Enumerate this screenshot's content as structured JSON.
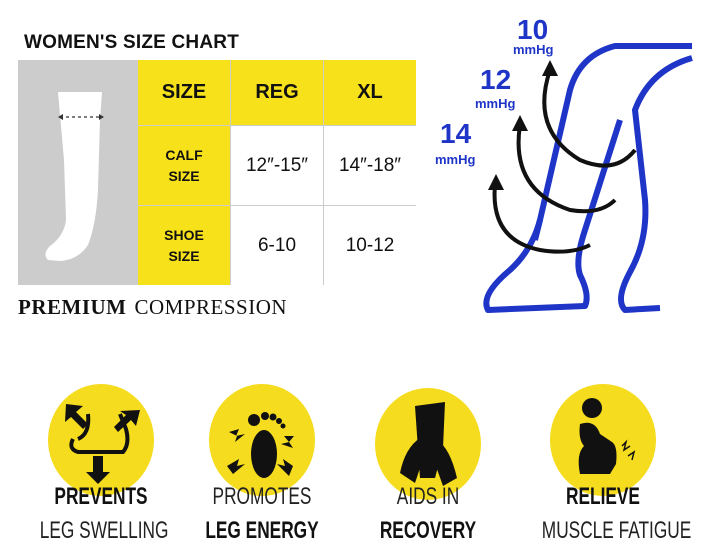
{
  "title": "WOMEN'S SIZE CHART",
  "table": {
    "headers": [
      "SIZE",
      "REG",
      "XL"
    ],
    "rows": [
      {
        "label": "CALF SIZE",
        "reg": "12″-15″",
        "xl": "14″-18″"
      },
      {
        "label": "SHOE SIZE",
        "reg": "6-10",
        "xl": "10-12"
      }
    ]
  },
  "tagline": {
    "bold": "PREMIUM",
    "regular": "COMPRESSION"
  },
  "pressure": [
    {
      "value": "10",
      "unit": "mmHg"
    },
    {
      "value": "12",
      "unit": "mmHg"
    },
    {
      "value": "14",
      "unit": "mmHg"
    }
  ],
  "features": [
    {
      "icon": "foot-swelling-arrows-icon",
      "line1": "PREVENTS",
      "line2": "LEG SWELLING",
      "bold_line": 1
    },
    {
      "icon": "footprint-energy-icon",
      "line1": "PROMOTES",
      "line2": "LEG ENERGY",
      "bold_line": 2
    },
    {
      "icon": "hands-massaging-foot-icon",
      "line1": "AIDS IN",
      "line2": "RECOVERY",
      "bold_line": 2
    },
    {
      "icon": "kneeling-person-pain-icon",
      "line1": "RELIEVE",
      "line2": "MUSCLE FATIGUE",
      "bold_line": 1
    }
  ],
  "colors": {
    "yellow": "#f7e11a",
    "blue": "#1f35c8",
    "gray": "#cccccc"
  }
}
